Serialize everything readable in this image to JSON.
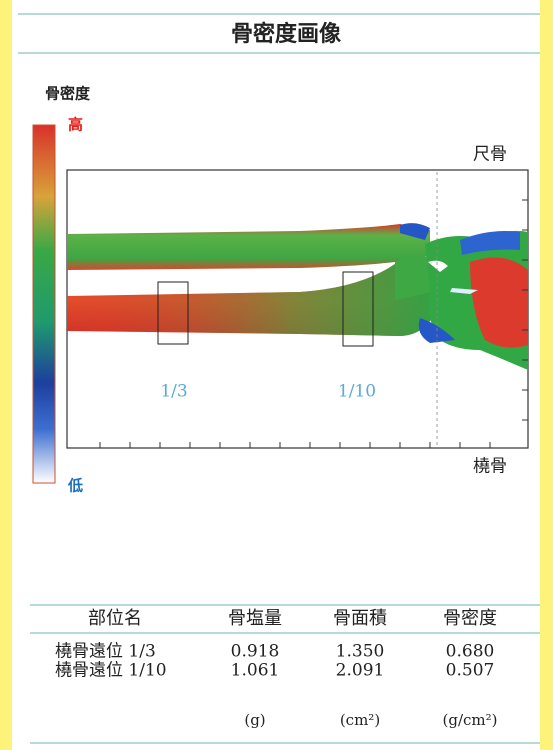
{
  "header": {
    "title": "骨密度画像"
  },
  "legend": {
    "title": "骨密度",
    "high": "高",
    "low": "低"
  },
  "image": {
    "ulna": "尺骨",
    "radius": "橈骨",
    "roi": [
      "1/3",
      "1/10"
    ]
  },
  "table": {
    "columns": [
      "部位名",
      "骨塩量",
      "骨面積",
      "骨密度"
    ],
    "rows": [
      [
        "橈骨遠位 1/3",
        "0.918",
        "1.350",
        "0.680"
      ],
      [
        "橈骨遠位 1/10",
        "1.061",
        "2.091",
        "0.507"
      ]
    ],
    "units": [
      "(g)",
      "(cm²)",
      "(g/cm²)"
    ]
  }
}
